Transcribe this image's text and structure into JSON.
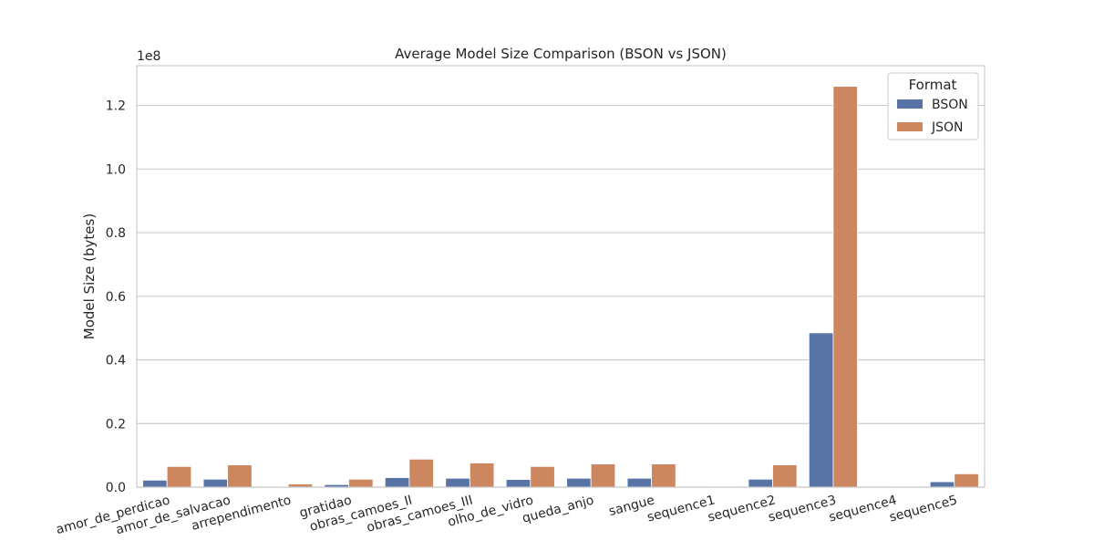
{
  "chart_data": {
    "type": "bar",
    "title": "Average Model Size Comparison (BSON vs JSON)",
    "xlabel": "",
    "ylabel": "Model Size (bytes)",
    "y_offset_text": "1e8",
    "ylim": [
      0,
      132500000
    ],
    "yticks": [
      0,
      20000000,
      40000000,
      60000000,
      80000000,
      100000000,
      120000000
    ],
    "ytick_labels": [
      "0.0",
      "0.2",
      "0.4",
      "0.6",
      "0.8",
      "1.0",
      "1.2"
    ],
    "grid": true,
    "legend": {
      "title": "Format",
      "placement": "top-right"
    },
    "categories": [
      "amor_de_perdicao",
      "amor_de_salvacao",
      "arrependimento",
      "gratidao",
      "obras_camoes_II",
      "obras_camoes_III",
      "olho_de_vidro",
      "queda_anjo",
      "sangue",
      "sequence1",
      "sequence2",
      "sequence3",
      "sequence4",
      "sequence5"
    ],
    "series": [
      {
        "name": "BSON",
        "color": "#5874a6",
        "values": [
          2200000,
          2500000,
          150000,
          800000,
          3000000,
          2800000,
          2400000,
          2800000,
          2800000,
          50000,
          2500000,
          48500000,
          50000,
          1700000
        ]
      },
      {
        "name": "JSON",
        "color": "#cc8760",
        "values": [
          6500000,
          7000000,
          1000000,
          2500000,
          8800000,
          7600000,
          6500000,
          7300000,
          7300000,
          150000,
          7000000,
          126000000,
          150000,
          4200000
        ]
      }
    ]
  }
}
